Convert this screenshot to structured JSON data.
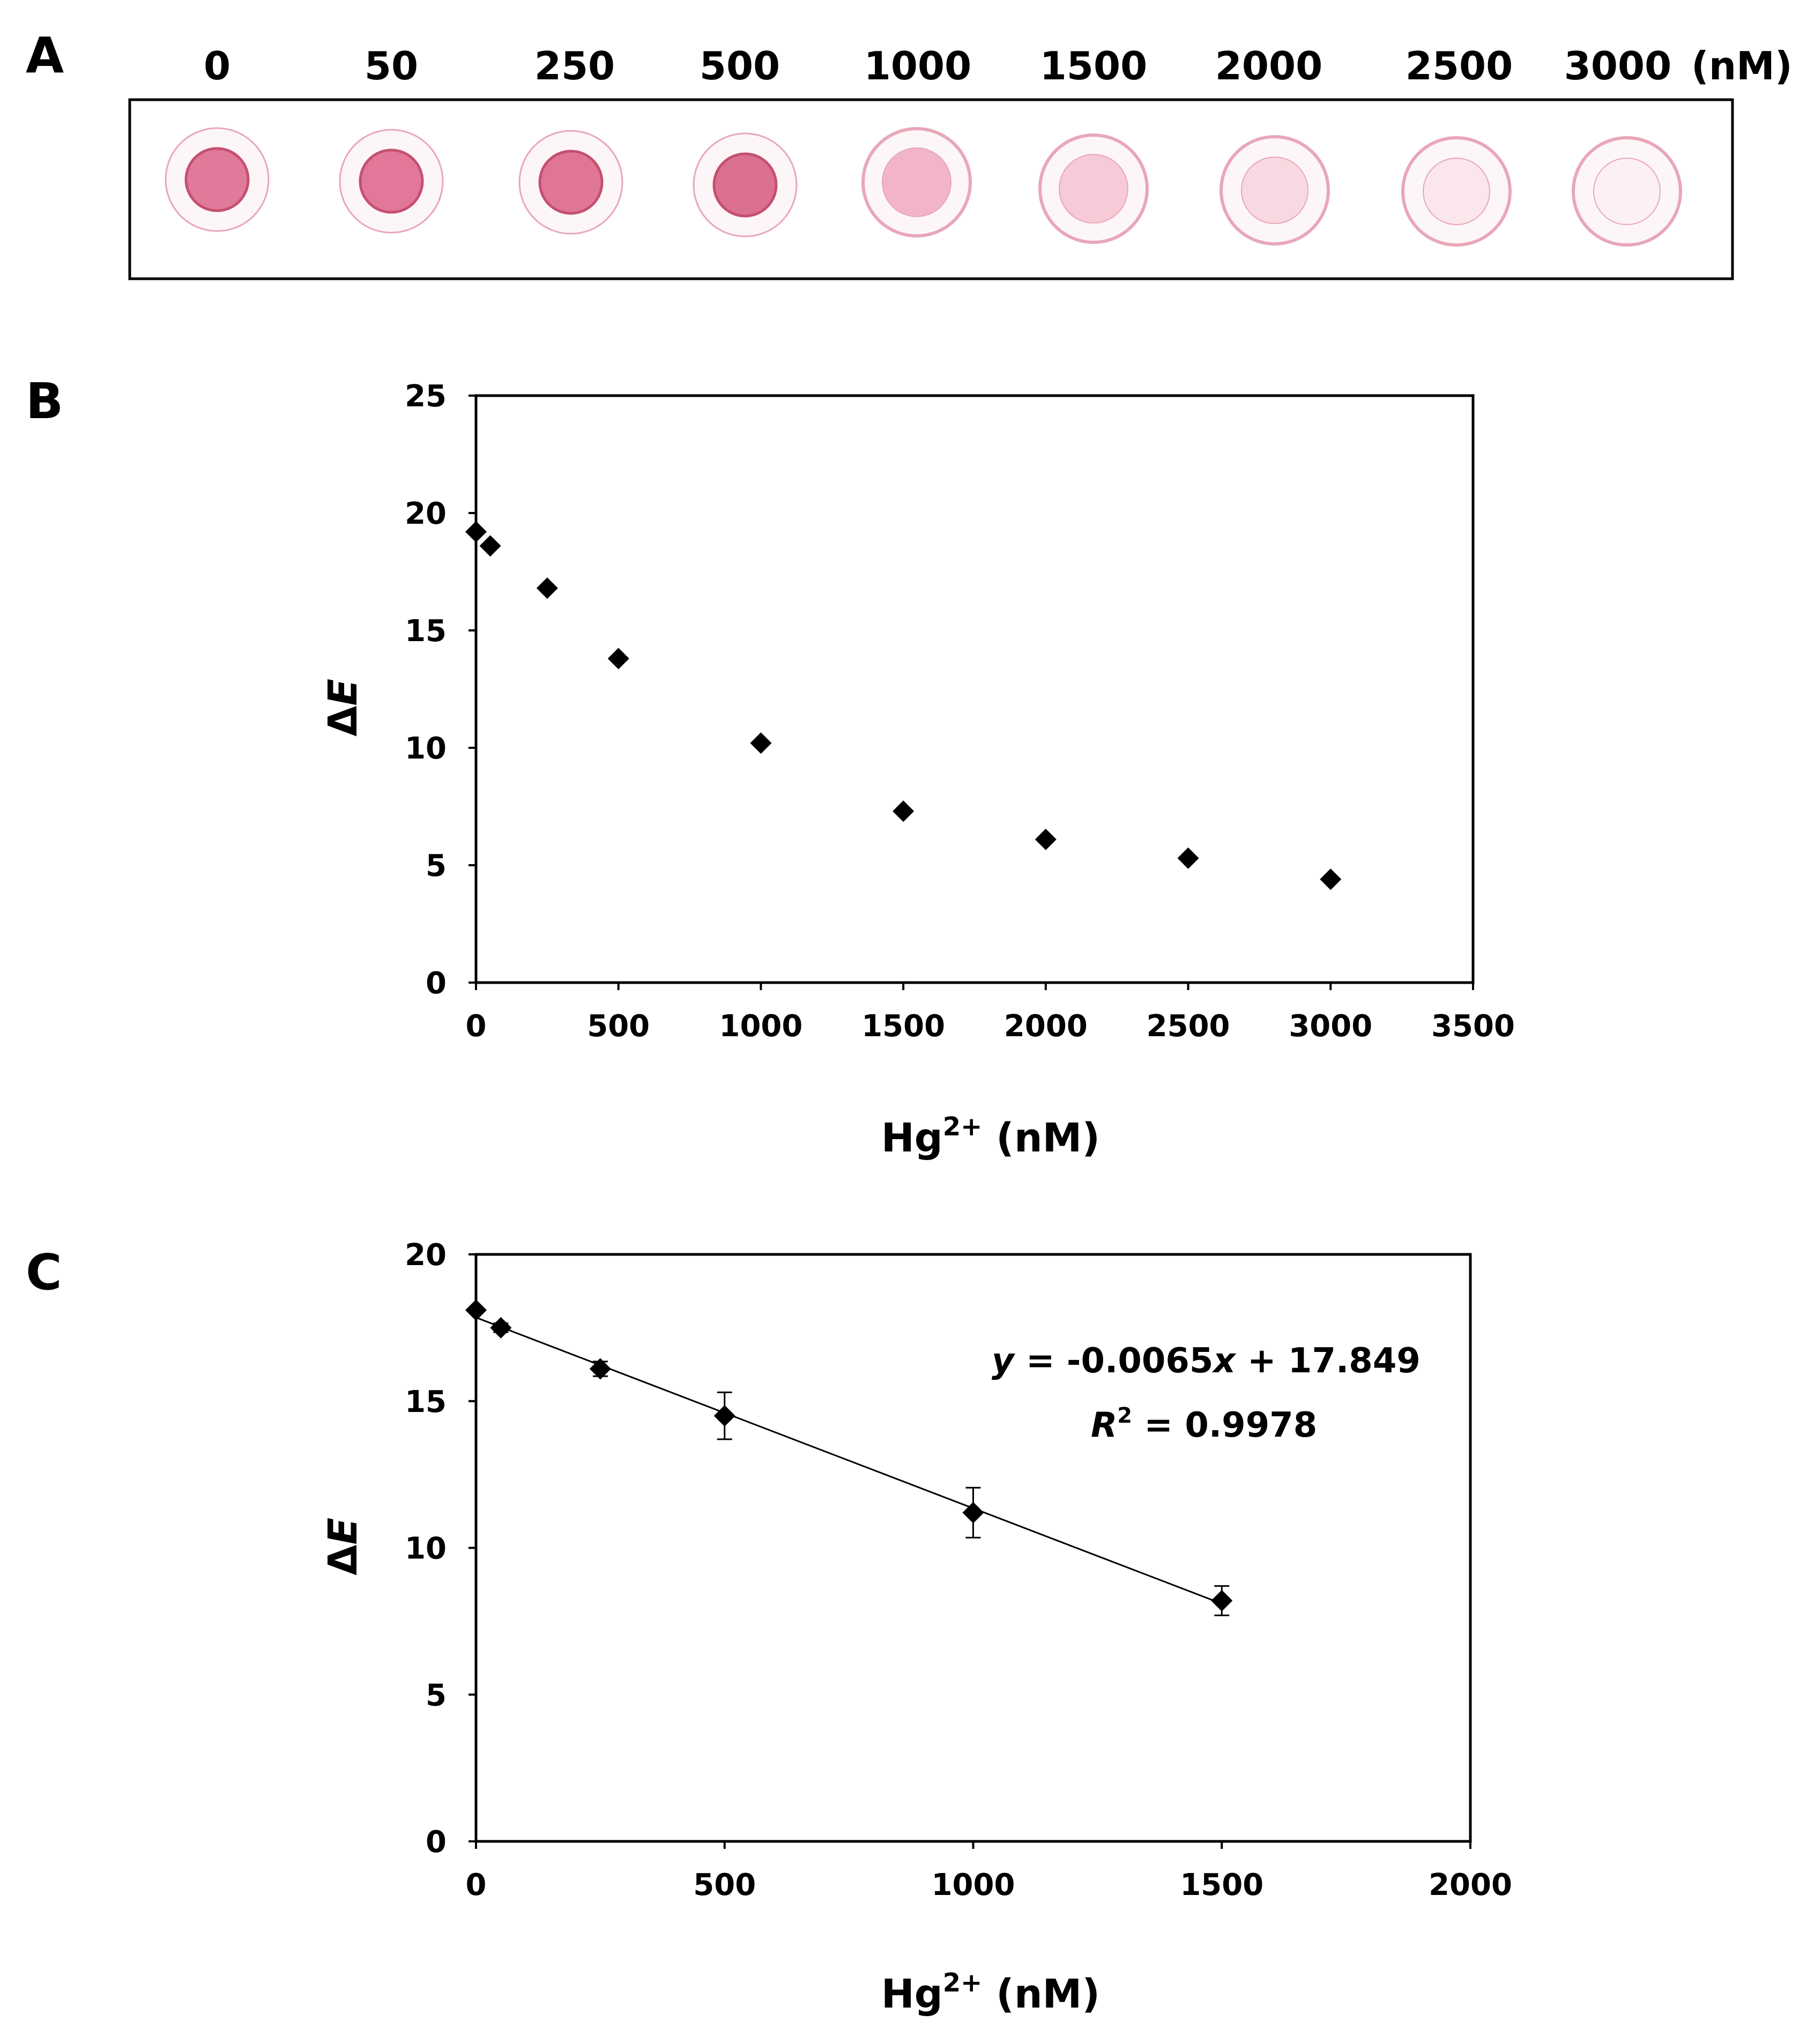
{
  "panels": {
    "a": {
      "letter": "A",
      "unit_label": "(nM)",
      "concentrations": [
        "0",
        "50",
        "250",
        "500",
        "1000",
        "1500",
        "2000",
        "2500",
        "3000"
      ],
      "spot_colors": [
        "#e07a9a",
        "#e1789a",
        "#e07696",
        "#dc7090",
        "#f2b5c8",
        "#f6cad6",
        "#f8d9e1",
        "#fae6eb",
        "#fcf0f3"
      ],
      "ring_color": "#e8a7b8"
    },
    "b": {
      "letter": "B"
    },
    "c": {
      "letter": "C",
      "equation": {
        "y": "y",
        "part1": " = -0.0065",
        "x": "x",
        "part2": " + 17.849",
        "r": "R",
        "r_sup": "2",
        "r_value": " = 0.9978"
      }
    }
  },
  "chart_data": [
    {
      "id": "panel-b",
      "type": "scatter",
      "title": "",
      "xlabel_main": "Hg",
      "xlabel_sup": "2+",
      "xlabel_unit": " (nM)",
      "ylabel": "ΔE",
      "xlim": [
        0,
        3500
      ],
      "ylim": [
        0,
        25
      ],
      "xticks": [
        0,
        500,
        1000,
        1500,
        2000,
        2500,
        3000,
        3500
      ],
      "yticks": [
        0,
        5,
        10,
        15,
        20,
        25
      ],
      "grid": false,
      "legend": "none",
      "marker": "diamond",
      "color": "#000000",
      "series": [
        {
          "name": "ΔE",
          "x": [
            0,
            50,
            250,
            500,
            1000,
            1500,
            2000,
            2500,
            3000
          ],
          "y": [
            19.2,
            18.6,
            16.8,
            13.8,
            10.2,
            7.3,
            6.1,
            5.3,
            4.4
          ]
        }
      ]
    },
    {
      "id": "panel-c",
      "type": "scatter",
      "title": "",
      "xlabel_main": "Hg",
      "xlabel_sup": "2+",
      "xlabel_unit": " (nM)",
      "ylabel": "ΔE",
      "xlim": [
        0,
        2000
      ],
      "ylim": [
        0,
        20
      ],
      "xticks": [
        0,
        500,
        1000,
        1500,
        2000
      ],
      "yticks": [
        0,
        5,
        10,
        15,
        20
      ],
      "grid": false,
      "legend": "none",
      "marker": "diamond",
      "color": "#000000",
      "series": [
        {
          "name": "ΔE",
          "x": [
            0,
            50,
            250,
            500,
            1000,
            1500
          ],
          "y": [
            18.1,
            17.5,
            16.1,
            14.5,
            11.2,
            8.2
          ],
          "error": [
            0.0,
            0.15,
            0.25,
            0.8,
            0.85,
            0.5
          ]
        }
      ],
      "trendline": {
        "slope": -0.0065,
        "intercept": 17.849,
        "x_range": [
          0,
          1500
        ]
      }
    }
  ]
}
